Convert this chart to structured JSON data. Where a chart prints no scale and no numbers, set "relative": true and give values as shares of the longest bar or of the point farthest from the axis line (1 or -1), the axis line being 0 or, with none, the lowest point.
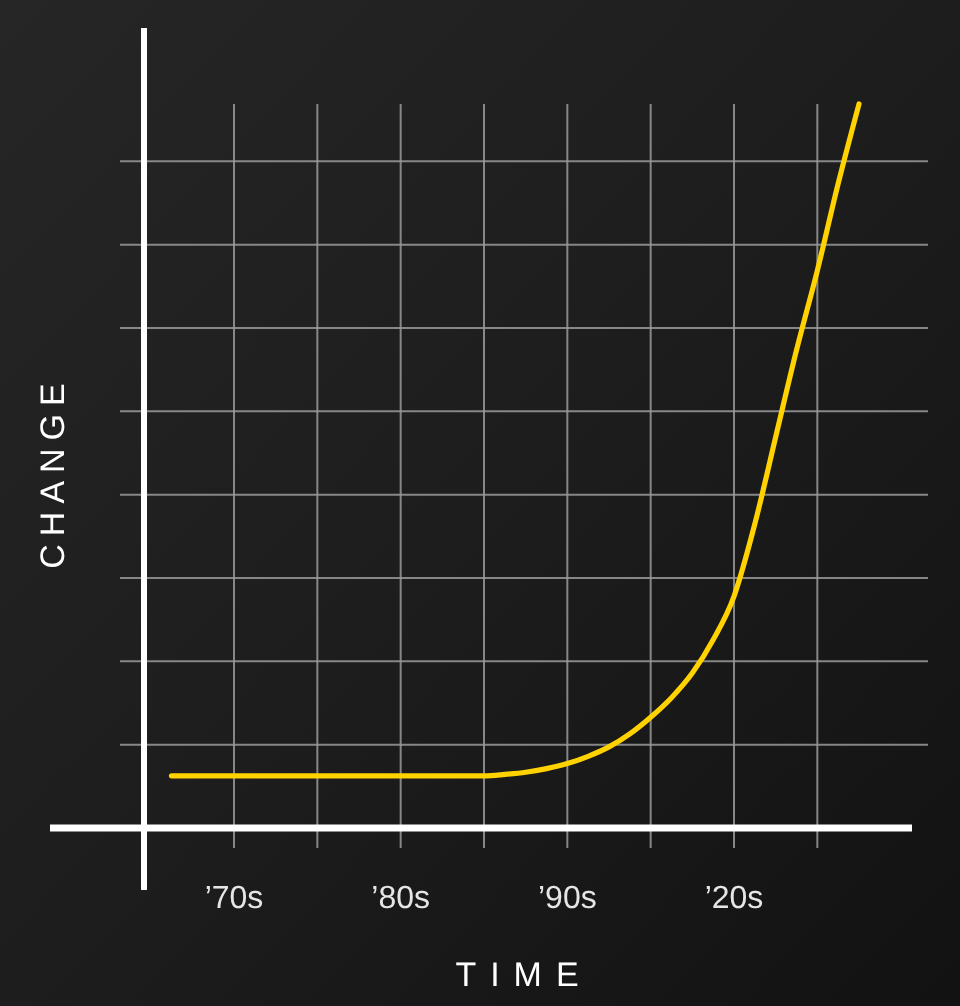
{
  "chart_data": {
    "type": "line",
    "xlabel": "TIME",
    "ylabel": "CHANGE",
    "relative": true,
    "categories": [
      null,
      null,
      null,
      "’70s",
      null,
      null,
      null,
      null,
      null,
      null,
      null,
      "’80s",
      null,
      null,
      null,
      null,
      null,
      null,
      null,
      "’90s",
      null,
      null,
      null,
      null,
      null,
      null,
      null,
      "’20s",
      null,
      null,
      null,
      null,
      null,
      null
    ],
    "grid": true,
    "series": [
      {
        "color": "#ffd200",
        "values": [
          0.072,
          0.072,
          0.072,
          0.072,
          0.072,
          0.072,
          0.072,
          0.072,
          0.072,
          0.072,
          0.072,
          0.072,
          0.072,
          0.072,
          0.072,
          0.072,
          0.074,
          0.077,
          0.082,
          0.089,
          0.099,
          0.112,
          0.13,
          0.153,
          0.18,
          0.214,
          0.26,
          0.32,
          0.42,
          0.54,
          0.66,
          0.77,
          0.89,
          1
        ]
      }
    ]
  }
}
